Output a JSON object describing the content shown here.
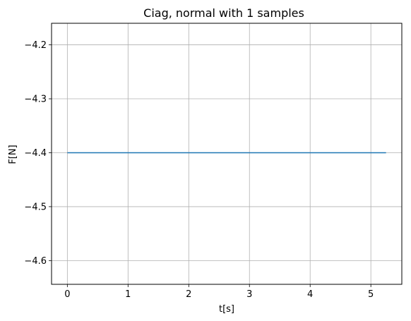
{
  "chart_data": {
    "type": "line",
    "title": "Ciag, normal with 1 samples",
    "xlabel": "t[s]",
    "ylabel": "F[N]",
    "xlim": [
      -0.26,
      5.51
    ],
    "ylim": [
      -4.644,
      -4.16
    ],
    "xticks": [
      0,
      1,
      2,
      3,
      4,
      5
    ],
    "xtick_labels": [
      "0",
      "1",
      "2",
      "3",
      "4",
      "5"
    ],
    "yticks": [
      -4.2,
      -4.3,
      -4.4,
      -4.5,
      -4.6
    ],
    "ytick_labels": [
      "−4.2",
      "−4.3",
      "−4.4",
      "−4.5",
      "−4.6"
    ],
    "grid": true,
    "series": [
      {
        "x": [
          0,
          5.25
        ],
        "y": [
          -4.4,
          -4.4
        ],
        "color": "#1f77b4"
      }
    ]
  }
}
